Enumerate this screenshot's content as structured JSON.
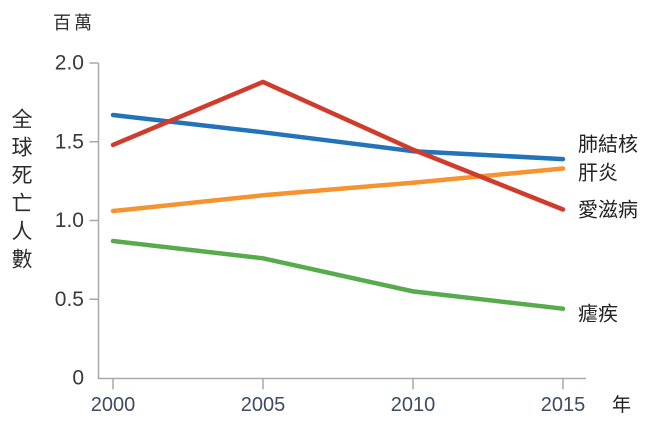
{
  "chart_data": {
    "type": "line",
    "title": "",
    "unit_label": "百萬",
    "ylabel": "全球死亡人數",
    "xlabel": "年",
    "x": [
      2000,
      2005,
      2010,
      2015
    ],
    "x_tick_labels": [
      "2000",
      "2005",
      "2010",
      "2015"
    ],
    "y_ticks": [
      0,
      0.5,
      1.0,
      1.5,
      2.0
    ],
    "y_tick_labels": [
      "0",
      "0.5",
      "1.0",
      "1.5",
      "2.0"
    ],
    "ylim": [
      0,
      2.0
    ],
    "xlim": [
      2000,
      2015
    ],
    "grid": false,
    "legend_position": "labels-at-line-ends-right",
    "series": [
      {
        "name": "肺結核",
        "color": "#2273b8",
        "values": [
          1.67,
          1.56,
          1.44,
          1.39
        ]
      },
      {
        "name": "肝炎",
        "color": "#f4932f",
        "values": [
          1.06,
          1.16,
          1.24,
          1.33
        ]
      },
      {
        "name": "愛滋病",
        "color": "#d03b2c",
        "values": [
          1.48,
          1.88,
          1.45,
          1.07
        ]
      },
      {
        "name": "瘧疾",
        "color": "#57ab4c",
        "values": [
          0.87,
          0.76,
          0.55,
          0.44
        ]
      }
    ]
  },
  "colors": {
    "axis_line": "#a9a9a9",
    "y_tick_text": "#3a3a3a",
    "x_tick_text": "#3e4a63",
    "series_label_text": "#222222",
    "axis_title_text": "#2b2b2b",
    "background": "#ffffff"
  }
}
